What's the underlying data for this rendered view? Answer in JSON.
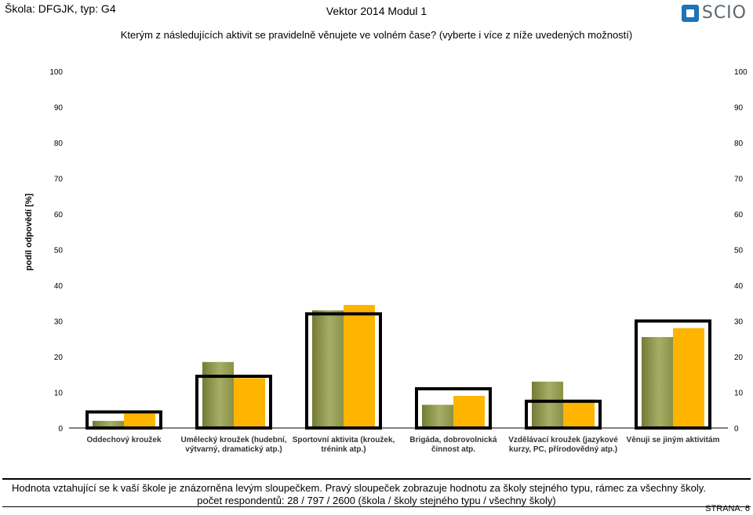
{
  "header": {
    "school": "Škola: DFGJK, typ: G4",
    "title": "Vektor 2014 Modul 1",
    "logo_text": "SCIO"
  },
  "question": "Kterým z následujících aktivit se pravidelně věnujete ve volném čase? (vyberte i více z níže uvedených možností)",
  "chart_data": {
    "type": "bar",
    "ylabel": "podíl odpovědí [%]",
    "ylim": [
      0,
      100
    ],
    "yticks": [
      0,
      10,
      20,
      30,
      40,
      50,
      60,
      70,
      80,
      90,
      100
    ],
    "grid": false,
    "categories": [
      [
        "Oddechový kroužek"
      ],
      [
        "Umělecký kroužek (hudební,",
        "výtvarný, dramatický atp.)"
      ],
      [
        "Sportovní aktivita (kroužek,",
        "trénink atp.)"
      ],
      [
        "Brigáda, dobrovolnická",
        "činnost atp."
      ],
      [
        "Vzdělávací kroužek (jazykové",
        "kurzy, PC, přírodovědný atp.)"
      ],
      [
        "Věnuji se jiným aktivitám"
      ]
    ],
    "series": [
      {
        "values": [
          2,
          18.5,
          33,
          6.5,
          13,
          25.5
        ]
      },
      {
        "values": [
          4,
          14,
          34.5,
          9,
          8,
          28
        ]
      },
      {
        "values": [
          4.5,
          14.5,
          32,
          11,
          7.5,
          30
        ]
      }
    ],
    "colors": {
      "school_dark": "#737b36",
      "school_light": "#a6ad66",
      "same_type": "#ffb400",
      "all_schools_outline": "#000000"
    }
  },
  "footer": {
    "note": "Hodnota vztahující se k vaší škole je znázorněna levým sloupečkem. Pravý sloupeček zobrazuje hodnotu za školy stejného typu, rámec za všechny školy.",
    "respondents": "počet respondentů: 28 / 797 / 2600 (škola / školy stejného typu / všechny školy)",
    "page": "STRANA: 6"
  }
}
